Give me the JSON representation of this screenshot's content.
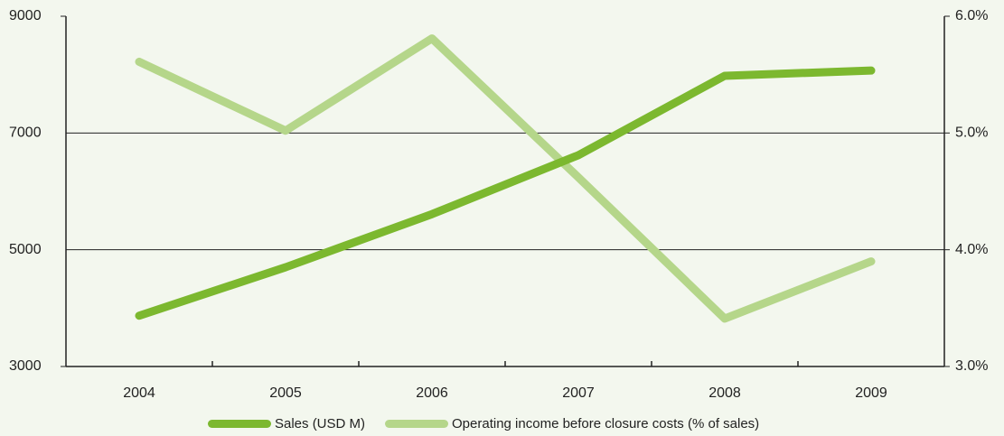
{
  "chart_data": {
    "type": "line",
    "categories": [
      "2004",
      "2005",
      "2006",
      "2007",
      "2008",
      "2009"
    ],
    "series": [
      {
        "name": "Sales (USD M)",
        "color": "#7cb82f",
        "values": [
          3870,
          4700,
          5610,
          6620,
          7980,
          8070
        ]
      },
      {
        "name": "Operating income before closure costs (% of sales)",
        "color": "#b5d68a",
        "axis": "y2",
        "values": [
          5.61,
          5.02,
          5.81,
          4.62,
          3.41,
          3.9
        ]
      }
    ],
    "ylim": [
      3000,
      9000
    ],
    "yticks": [
      3000,
      5000,
      7000,
      9000
    ],
    "y2lim": [
      3.0,
      6.0
    ],
    "y2ticks": [
      {
        "value": 3.0,
        "label": "3.0%"
      },
      {
        "value": 4.0,
        "label": "4.0%"
      },
      {
        "value": 5.0,
        "label": "5.0%"
      },
      {
        "value": 6.0,
        "label": "6.0%"
      }
    ],
    "grid": true,
    "legend": "bottom"
  }
}
